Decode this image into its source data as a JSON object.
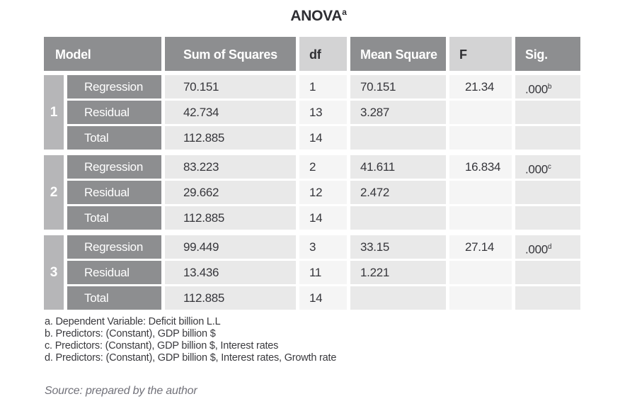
{
  "title": {
    "text": "ANOVA",
    "superscript": "a"
  },
  "table": {
    "headers": {
      "model": "Model",
      "sum_of_squares": "Sum of Squares",
      "df": "df",
      "mean_square": "Mean Square",
      "f": "F",
      "sig": "Sig."
    },
    "blocks": [
      {
        "model": "1",
        "rows": [
          {
            "label": "Regression",
            "sum_of_squares": "70.151",
            "df": "1",
            "mean_square": "70.151",
            "f": "21.34",
            "sig": ".000",
            "sig_sup": "b"
          },
          {
            "label": "Residual",
            "sum_of_squares": "42.734",
            "df": "13",
            "mean_square": "3.287",
            "f": "",
            "sig": "",
            "sig_sup": ""
          },
          {
            "label": "Total",
            "sum_of_squares": "112.885",
            "df": "14",
            "mean_square": "",
            "f": "",
            "sig": "",
            "sig_sup": ""
          }
        ]
      },
      {
        "model": "2",
        "rows": [
          {
            "label": "Regression",
            "sum_of_squares": "83.223",
            "df": "2",
            "mean_square": "41.611",
            "f": "16.834",
            "sig": ".000",
            "sig_sup": "c"
          },
          {
            "label": "Residual",
            "sum_of_squares": "29.662",
            "df": "12",
            "mean_square": "2.472",
            "f": "",
            "sig": "",
            "sig_sup": ""
          },
          {
            "label": "Total",
            "sum_of_squares": "112.885",
            "df": "14",
            "mean_square": "",
            "f": "",
            "sig": "",
            "sig_sup": ""
          }
        ]
      },
      {
        "model": "3",
        "rows": [
          {
            "label": "Regression",
            "sum_of_squares": "99.449",
            "df": "3",
            "mean_square": "33.15",
            "f": "27.14",
            "sig": ".000",
            "sig_sup": "d"
          },
          {
            "label": "Residual",
            "sum_of_squares": "13.436",
            "df": "11",
            "mean_square": "1.221",
            "f": "",
            "sig": "",
            "sig_sup": ""
          },
          {
            "label": "Total",
            "sum_of_squares": "112.885",
            "df": "14",
            "mean_square": "",
            "f": "",
            "sig": "",
            "sig_sup": ""
          }
        ]
      }
    ]
  },
  "footnotes": [
    "a. Dependent Variable: Deficit billion L.L",
    "b. Predictors: (Constant), GDP billion $",
    "c. Predictors: (Constant), GDP billion $, Interest rates",
    "d. Predictors: (Constant), GDP billion $, Interest rates, Growth rate"
  ],
  "source": "Source: prepared by the author",
  "colors": {
    "header_dark": "#8d8e90",
    "header_light": "#d3d3d4",
    "model_strip": "#b6b6b8",
    "cell_gray": "#e9e9e9",
    "cell_light": "#f5f5f5"
  }
}
